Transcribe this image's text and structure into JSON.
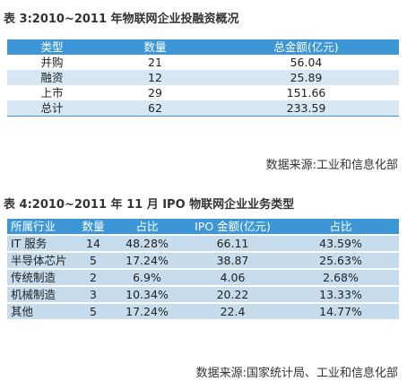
{
  "table3": {
    "title": "表 3:2010~2011 年物联网企业投融资概况",
    "columns": [
      "类型",
      "数量",
      "总金额(亿元)"
    ],
    "rows": [
      [
        "并购",
        "21",
        "56.04"
      ],
      [
        "融资",
        "12",
        "25.89"
      ],
      [
        "上市",
        "29",
        "151.66"
      ],
      [
        "总计",
        "62",
        "233.59"
      ]
    ],
    "source": "数据来源:工业和信息化部"
  },
  "table4": {
    "title": "表 4:2010~2011 年 11 月 IPO 物联网企业业务类型",
    "columns": [
      "所属行业",
      "数量",
      "占比",
      "IPO 金额(亿元)",
      "占比"
    ],
    "rows": [
      [
        "IT 服务",
        "14",
        "48.28%",
        "66.11",
        "43.59%"
      ],
      [
        "半导体芯片",
        "5",
        "17.24%",
        "38.87",
        "25.63%"
      ],
      [
        "传统制造",
        "2",
        "6.9%",
        "4.06",
        "2.68%"
      ],
      [
        "机械制造",
        "3",
        "10.34%",
        "20.22",
        "13.33%"
      ],
      [
        "其他",
        "5",
        "17.24%",
        "22.4",
        "14.77%"
      ]
    ],
    "source": "数据来源:国家统计局、工业和信息化部"
  }
}
